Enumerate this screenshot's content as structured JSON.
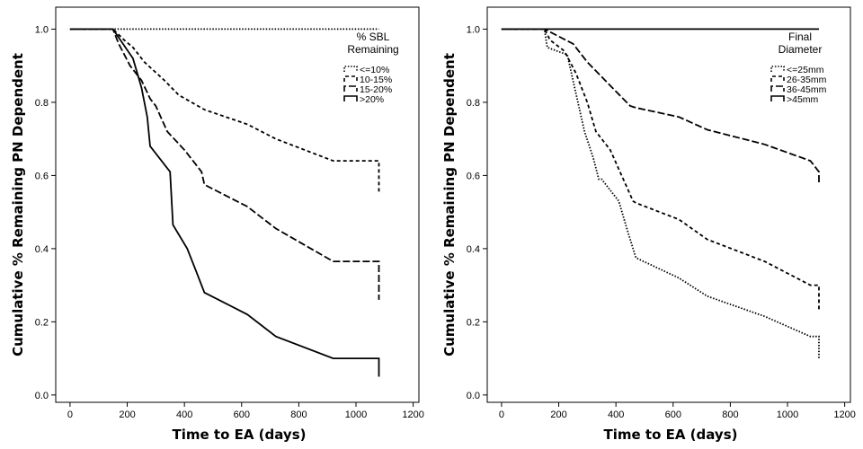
{
  "chart_data": [
    {
      "type": "line",
      "xlabel": "Time to EA (days)",
      "ylabel": "Cumulative % Remaining PN Dependent",
      "xlim": [
        -50,
        1220
      ],
      "ylim": [
        -0.02,
        1.06
      ],
      "xticks": [
        "0",
        "200",
        "400",
        "600",
        "800",
        "1000",
        "1200"
      ],
      "yticks": [
        "0.0",
        "0.2",
        "0.4",
        "0.6",
        "0.8",
        "1.0"
      ],
      "legend": {
        "title_lines": [
          "% SBL",
          "Remaining"
        ],
        "placement": "top-right"
      },
      "series": [
        {
          "name": "<=10%",
          "style": "dotted",
          "x": [
            0,
            1080
          ],
          "y": [
            1.0,
            1.0
          ]
        },
        {
          "name": "10-15%",
          "style": "short-dash",
          "x": [
            0,
            150,
            190,
            220,
            260,
            330,
            380,
            470,
            620,
            720,
            920,
            1080,
            1080
          ],
          "y": [
            1.0,
            1.0,
            0.97,
            0.95,
            0.91,
            0.86,
            0.82,
            0.78,
            0.74,
            0.7,
            0.64,
            0.64,
            0.55
          ]
        },
        {
          "name": "15-20%",
          "style": "long-dash",
          "x": [
            0,
            150,
            170,
            210,
            250,
            280,
            300,
            340,
            400,
            430,
            460,
            470,
            620,
            720,
            920,
            1080,
            1080
          ],
          "y": [
            1.0,
            1.0,
            0.96,
            0.9,
            0.86,
            0.81,
            0.79,
            0.72,
            0.67,
            0.64,
            0.61,
            0.575,
            0.515,
            0.455,
            0.365,
            0.365,
            0.26
          ]
        },
        {
          "name": ">20%",
          "style": "solid",
          "x": [
            0,
            150,
            220,
            250,
            270,
            280,
            350,
            360,
            410,
            440,
            470,
            620,
            720,
            920,
            1080,
            1080
          ],
          "y": [
            1.0,
            1.0,
            0.92,
            0.84,
            0.76,
            0.68,
            0.61,
            0.465,
            0.4,
            0.34,
            0.28,
            0.22,
            0.16,
            0.1,
            0.1,
            0.05
          ]
        }
      ]
    },
    {
      "type": "line",
      "xlabel": "Time to EA (days)",
      "ylabel": "Cumulative % Remaining PN Dependent",
      "xlim": [
        -50,
        1220
      ],
      "ylim": [
        -0.02,
        1.06
      ],
      "xticks": [
        "0",
        "200",
        "400",
        "600",
        "800",
        "1000",
        "1200"
      ],
      "yticks": [
        "0.0",
        "0.2",
        "0.4",
        "0.6",
        "0.8",
        "1.0"
      ],
      "legend": {
        "title_lines": [
          "Final",
          "Diameter"
        ],
        "placement": "top-right"
      },
      "series": [
        {
          "name": "<=25mm",
          "style": "dotted",
          "x": [
            0,
            150,
            160,
            230,
            250,
            270,
            290,
            320,
            340,
            350,
            410,
            440,
            470,
            620,
            720,
            920,
            1080,
            1110,
            1110
          ],
          "y": [
            1.0,
            1.0,
            0.95,
            0.93,
            0.86,
            0.79,
            0.72,
            0.65,
            0.59,
            0.59,
            0.53,
            0.45,
            0.375,
            0.32,
            0.27,
            0.215,
            0.16,
            0.16,
            0.1
          ]
        },
        {
          "name": "26-35mm",
          "style": "short-dash",
          "x": [
            0,
            150,
            170,
            220,
            260,
            300,
            330,
            380,
            420,
            460,
            470,
            620,
            720,
            920,
            1080,
            1110,
            1110
          ],
          "y": [
            1.0,
            1.0,
            0.97,
            0.94,
            0.88,
            0.8,
            0.72,
            0.67,
            0.6,
            0.53,
            0.525,
            0.48,
            0.425,
            0.365,
            0.3,
            0.3,
            0.23
          ]
        },
        {
          "name": "36-45mm",
          "style": "long-dash",
          "x": [
            0,
            150,
            250,
            300,
            350,
            400,
            450,
            470,
            620,
            720,
            920,
            1080,
            1110,
            1110
          ],
          "y": [
            1.0,
            1.0,
            0.96,
            0.91,
            0.87,
            0.83,
            0.79,
            0.785,
            0.76,
            0.725,
            0.685,
            0.64,
            0.61,
            0.58
          ]
        },
        {
          "name": ">45mm",
          "style": "solid",
          "x": [
            0,
            1110
          ],
          "y": [
            1.0,
            1.0
          ]
        }
      ]
    }
  ]
}
